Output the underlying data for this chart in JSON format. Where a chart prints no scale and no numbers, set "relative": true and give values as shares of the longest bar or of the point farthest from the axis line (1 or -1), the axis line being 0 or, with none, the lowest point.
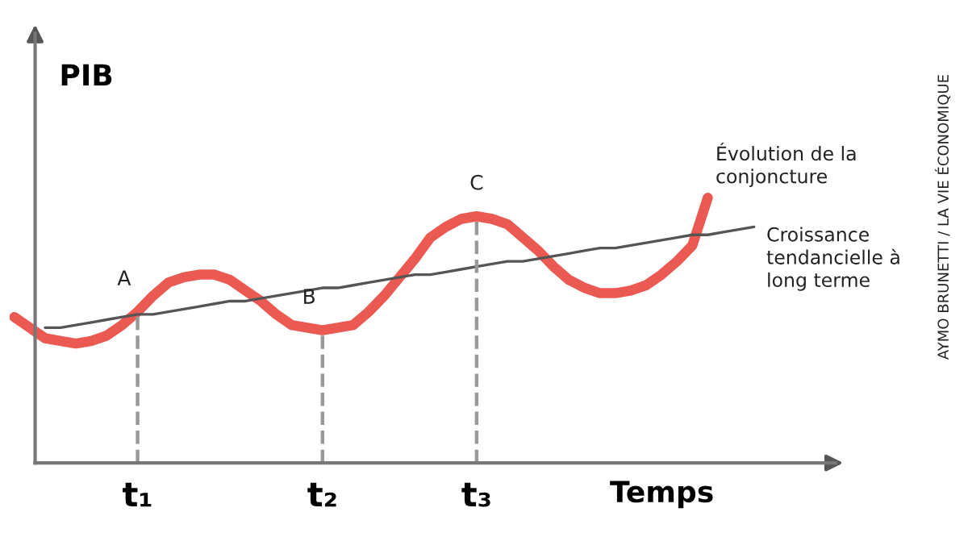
{
  "chart_data": {
    "type": "line",
    "relative": true,
    "xlabel": "Temps",
    "ylabel": "PIB",
    "categories": [
      null,
      null,
      null,
      null,
      null,
      null,
      null,
      null,
      "t₁",
      null,
      null,
      null,
      null,
      null,
      null,
      null,
      null,
      null,
      null,
      null,
      "t₂",
      null,
      null,
      null,
      null,
      null,
      null,
      null,
      null,
      null,
      "t₃",
      null,
      null,
      null,
      null,
      null,
      null,
      null,
      null,
      null,
      null,
      null,
      null,
      null,
      null,
      null,
      null,
      null,
      null
    ],
    "tick_labels": "x",
    "grid": false,
    "legend": false,
    "marker": "none",
    "line_style": "solid",
    "series": [
      {
        "name": "Évolution de la conjoncture",
        "color": "#e8473f",
        "values": [
          0.55,
          0.51,
          0.47,
          0.46,
          0.45,
          0.46,
          0.48,
          0.52,
          0.57,
          0.63,
          0.68,
          0.7,
          0.71,
          0.71,
          0.69,
          0.65,
          0.61,
          0.56,
          0.52,
          0.51,
          0.5,
          0.51,
          0.52,
          0.57,
          0.63,
          0.7,
          0.77,
          0.85,
          0.89,
          0.92,
          0.93,
          0.92,
          0.9,
          0.85,
          0.8,
          0.74,
          0.69,
          0.66,
          0.64,
          0.64,
          0.65,
          0.67,
          0.71,
          0.76,
          0.82,
          1,
          null,
          null,
          null
        ]
      },
      {
        "name": "Croissance tendancielle à long terme",
        "color": "#555555",
        "values": [
          null,
          null,
          0.51,
          0.51,
          0.52,
          0.53,
          0.54,
          0.55,
          0.56,
          0.56,
          0.57,
          0.58,
          0.59,
          0.6,
          0.61,
          0.61,
          0.62,
          0.63,
          0.64,
          0.65,
          0.66,
          0.66,
          0.67,
          0.68,
          0.69,
          0.7,
          0.71,
          0.71,
          0.72,
          0.73,
          0.74,
          0.75,
          0.76,
          0.76,
          0.77,
          0.78,
          0.79,
          0.8,
          0.81,
          0.81,
          0.82,
          0.83,
          0.84,
          0.85,
          0.86,
          0.86,
          0.87,
          0.88,
          0.89
        ]
      }
    ],
    "ref_lines": [
      {
        "axis": "x",
        "value": "t₁",
        "line_style": "dashed",
        "color": "#999999"
      },
      {
        "axis": "x",
        "value": "t₂",
        "line_style": "dashed",
        "color": "#999999"
      },
      {
        "axis": "x",
        "value": "t₃",
        "line_style": "dashed",
        "color": "#999999"
      }
    ],
    "annotations": [
      {
        "text": "A",
        "x": "t₁",
        "y": 0.57
      },
      {
        "text": "B",
        "x": "t₂",
        "y": 0.5
      },
      {
        "text": "C",
        "x": "t₃",
        "y": 0.93
      },
      "AYMO BRUNETTI / LA VIE ÉCONOMIQUE"
    ]
  }
}
